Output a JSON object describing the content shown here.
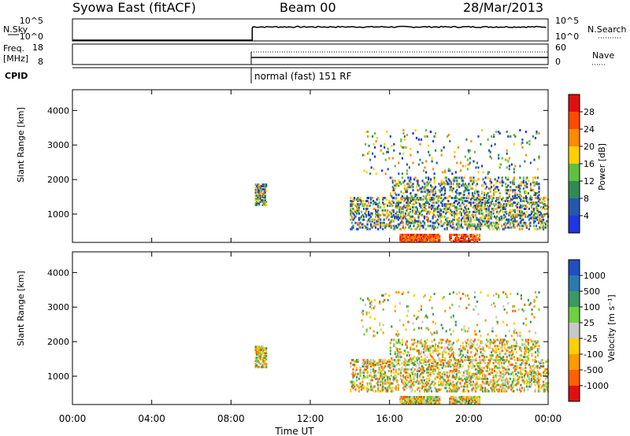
{
  "header": {
    "station": "Syowa East (fitACF)",
    "beam": "Beam 00",
    "date": "28/Mar/2013"
  },
  "top_panels": {
    "nsky_label": "N.Sky",
    "nsky_ticks": [
      "10^5",
      "10^0"
    ],
    "nsearch_label": "N.Search",
    "nsearch_ticks": [
      "10^5",
      "10^0"
    ],
    "freq_label_1": "Freq.",
    "freq_label_2": "[MHz]",
    "freq_ticks": [
      "18",
      "8"
    ],
    "nave_label": "Nave",
    "nave_ticks": [
      "60",
      "0"
    ],
    "cpid_label": "CPID",
    "cpid_text": "normal (fast) 151 RF"
  },
  "colors": {
    "power": [
      "#1f35e0",
      "#2457b0",
      "#2f8a55",
      "#5fc040",
      "#ffd000",
      "#ff8a00",
      "#ff4a00",
      "#e01010"
    ],
    "velocity": [
      "#2050c0",
      "#2a7ab0",
      "#3a9a60",
      "#6fcf3f",
      "#c8c8c8",
      "#ffd000",
      "#ff9a00",
      "#ff6000",
      "#e01010"
    ]
  },
  "chart_data": [
    {
      "type": "heatmap",
      "title": "",
      "ylabel": "Slant Range [km]",
      "xlabel": "",
      "x_ticks": [
        "00:00",
        "04:00",
        "08:00",
        "12:00",
        "16:00",
        "20:00",
        "00:00"
      ],
      "y_ticks": [
        "1000",
        "2000",
        "3000",
        "4000"
      ],
      "ylim": [
        180,
        4600
      ],
      "xlim_hours": [
        0,
        24
      ],
      "colorbar_label": "Power [dB]",
      "colorbar_ticks": [
        "4",
        "8",
        "12",
        "16",
        "20",
        "24",
        "28"
      ]
    },
    {
      "type": "heatmap",
      "title": "",
      "ylabel": "Slant Range [km]",
      "xlabel": "Time UT",
      "x_ticks": [
        "00:00",
        "04:00",
        "08:00",
        "12:00",
        "16:00",
        "20:00",
        "00:00"
      ],
      "y_ticks": [
        "1000",
        "2000",
        "3000",
        "4000"
      ],
      "ylim": [
        180,
        4600
      ],
      "xlim_hours": [
        0,
        24
      ],
      "colorbar_label": "Velocity [m s⁻¹]",
      "colorbar_ticks": [
        "1000",
        "500",
        "100",
        "25",
        "-25",
        "-100",
        "-500",
        "-1000"
      ]
    }
  ]
}
